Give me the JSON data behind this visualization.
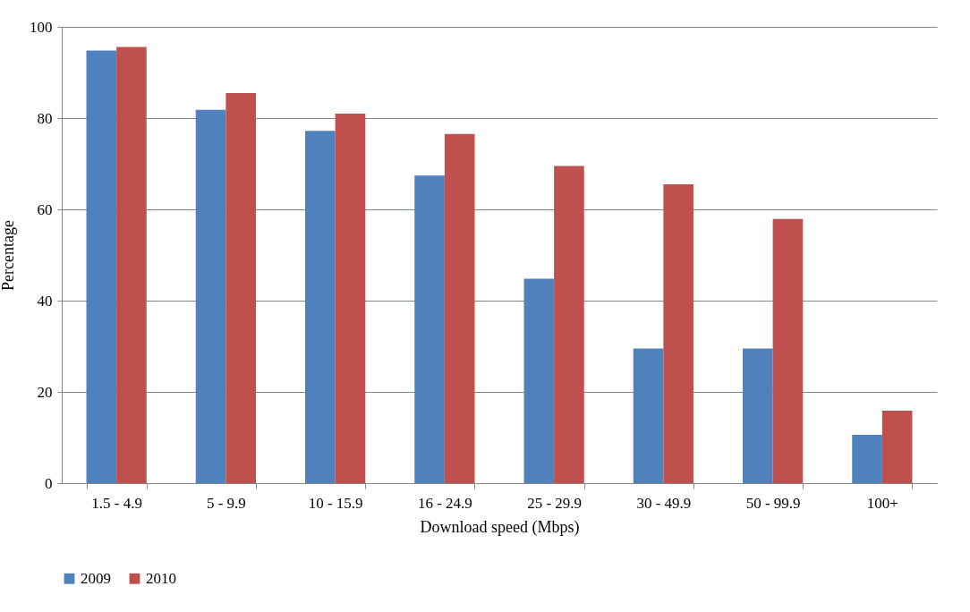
{
  "chart_data": {
    "type": "bar",
    "xlabel": "Download speed (Mbps)",
    "ylabel": "Percentage",
    "categories": [
      "1.5 - 4.9",
      "5 - 9.9",
      "10 - 15.9",
      "16 - 24.9",
      "25 - 29.9",
      "30 - 49.9",
      "50 - 99.9",
      "100+"
    ],
    "series": [
      {
        "name": "2009",
        "color": "#4f81bd",
        "values": [
          94.8,
          81.8,
          77.2,
          67.4,
          44.8,
          29.5,
          29.5,
          10.6
        ]
      },
      {
        "name": "2010",
        "color": "#c0504d",
        "values": [
          95.6,
          85.5,
          81.0,
          76.5,
          69.5,
          65.5,
          57.9,
          15.9
        ]
      }
    ],
    "ylim": [
      0,
      100
    ],
    "yticks": [
      0,
      20,
      40,
      60,
      80,
      100
    ],
    "grid": "y",
    "legend": "bottom"
  }
}
